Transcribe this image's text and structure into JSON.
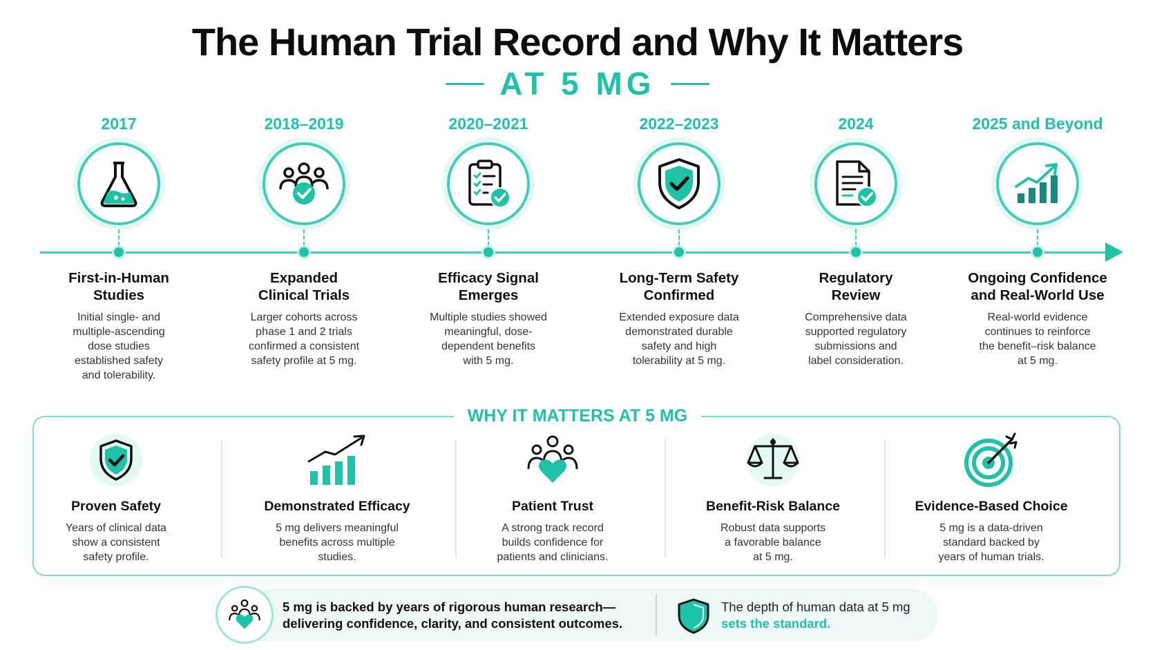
{
  "header": {
    "title": "The Human Trial Record and Why It Matters",
    "subtitle": "AT 5 MG"
  },
  "timeline": [
    {
      "year": "2017",
      "title_line1": "First-in-Human",
      "title_line2": "Studies",
      "icon": "flask-icon",
      "desc_lines": [
        "Initial single- and",
        "multiple-ascending",
        "dose studies",
        "established safety",
        "and tolerability."
      ]
    },
    {
      "year": "2018–2019",
      "title_line1": "Expanded",
      "title_line2": "Clinical Trials",
      "icon": "group-check-icon",
      "desc_lines": [
        "Larger cohorts across",
        "phase 1 and 2 trials",
        "confirmed a consistent",
        "safety profile at 5 mg."
      ]
    },
    {
      "year": "2020–2021",
      "title_line1": "Efficacy Signal",
      "title_line2": "Emerges",
      "icon": "clipboard-check-icon",
      "desc_lines": [
        "Multiple studies showed",
        "meaningful, dose-",
        "dependent benefits",
        "with 5 mg."
      ]
    },
    {
      "year": "2022–2023",
      "title_line1": "Long-Term Safety",
      "title_line2": "Confirmed",
      "icon": "shield-check-icon",
      "desc_lines": [
        "Extended exposure data",
        "demonstrated durable",
        "safety and high",
        "tolerability at 5 mg."
      ]
    },
    {
      "year": "2024",
      "title_line1": "Regulatory",
      "title_line2": "Review",
      "icon": "document-check-icon",
      "desc_lines": [
        "Comprehensive data",
        "supported regulatory",
        "submissions and",
        "label consideration."
      ]
    },
    {
      "year": "2025 and Beyond",
      "title_line1": "Ongoing Confidence",
      "title_line2": "and Real-World Use",
      "icon": "growth-chart-icon",
      "desc_lines": [
        "Real-world evidence",
        "continues to reinforce",
        "the benefit–risk balance",
        "at 5 mg."
      ]
    }
  ],
  "why": {
    "title": "WHY IT MATTERS AT 5 MG",
    "items": [
      {
        "title": "Proven Safety",
        "icon": "shield-check-icon",
        "desc_lines": [
          "Years of clinical data",
          "show a consistent",
          "safety profile."
        ]
      },
      {
        "title": "Demonstrated Efficacy",
        "icon": "bar-chart-arrow-icon",
        "desc_lines": [
          "5 mg delivers meaningful",
          "benefits across multiple",
          "studies."
        ]
      },
      {
        "title": "Patient Trust",
        "icon": "people-heart-icon",
        "desc_lines": [
          "A strong track record",
          "builds confidence for",
          "patients and clinicians."
        ]
      },
      {
        "title": "Benefit-Risk Balance",
        "icon": "scale-icon",
        "desc_lines": [
          "Robust data supports",
          "a favorable balance",
          "at 5 mg."
        ]
      },
      {
        "title": "Evidence-Based Choice",
        "icon": "target-arrow-icon",
        "desc_lines": [
          "5 mg is a data-driven",
          "standard backed by",
          "years of human trials."
        ]
      }
    ]
  },
  "footer": {
    "left_line1": "5 mg is backed by years of rigorous human research—",
    "left_line2": "delivering confidence, clarity, and consistent outcomes.",
    "right_line1": "The depth of human data at 5 mg",
    "right_highlight": "sets the standard."
  },
  "colors": {
    "accent": "#1fc2a6",
    "light_accent": "#e4f8f4",
    "text": "#111111"
  }
}
